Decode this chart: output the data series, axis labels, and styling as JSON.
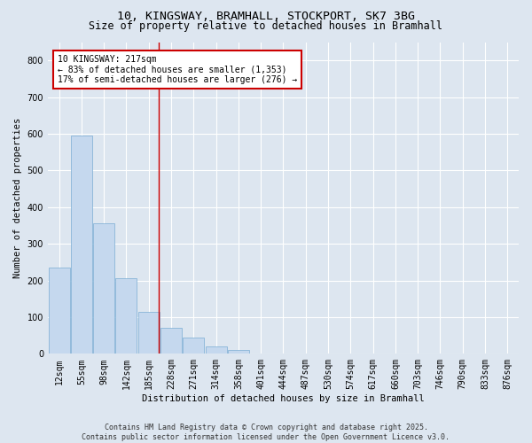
{
  "title_line1": "10, KINGSWAY, BRAMHALL, STOCKPORT, SK7 3BG",
  "title_line2": "Size of property relative to detached houses in Bramhall",
  "xlabel": "Distribution of detached houses by size in Bramhall",
  "ylabel": "Number of detached properties",
  "bar_color": "#c5d8ee",
  "bar_edge_color": "#7aadd4",
  "background_color": "#dde6f0",
  "fig_background_color": "#dde6f0",
  "grid_color": "#ffffff",
  "categories": [
    "12sqm",
    "55sqm",
    "98sqm",
    "142sqm",
    "185sqm",
    "228sqm",
    "271sqm",
    "314sqm",
    "358sqm",
    "401sqm",
    "444sqm",
    "487sqm",
    "530sqm",
    "574sqm",
    "617sqm",
    "660sqm",
    "703sqm",
    "746sqm",
    "790sqm",
    "833sqm",
    "876sqm"
  ],
  "values": [
    235,
    595,
    355,
    205,
    115,
    70,
    45,
    20,
    10,
    2,
    0,
    0,
    0,
    0,
    0,
    0,
    0,
    0,
    0,
    0,
    0
  ],
  "ylim": [
    0,
    850
  ],
  "yticks": [
    0,
    100,
    200,
    300,
    400,
    500,
    600,
    700,
    800
  ],
  "property_line_x": 4.45,
  "annotation_text": "10 KINGSWAY: 217sqm\n← 83% of detached houses are smaller (1,353)\n17% of semi-detached houses are larger (276) →",
  "annotation_box_color": "#ffffff",
  "annotation_box_edge_color": "#cc0000",
  "footer_line1": "Contains HM Land Registry data © Crown copyright and database right 2025.",
  "footer_line2": "Contains public sector information licensed under the Open Government Licence v3.0.",
  "title_fontsize": 9.5,
  "subtitle_fontsize": 8.5,
  "axis_label_fontsize": 7.5,
  "tick_fontsize": 7,
  "annotation_fontsize": 7,
  "footer_fontsize": 6
}
